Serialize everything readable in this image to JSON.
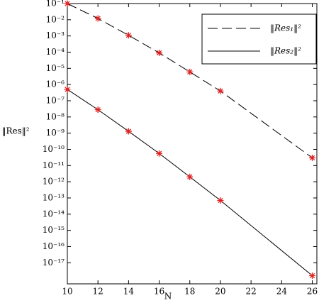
{
  "chart_data": {
    "type": "line",
    "xlabel": "N",
    "ylabel": "‖Res‖²",
    "x": [
      10,
      12,
      14,
      16,
      18,
      20,
      26
    ],
    "series": [
      {
        "name": "‖Res₁‖²",
        "color": "#000000",
        "linestyle": "dashed",
        "values": [
          0.1,
          0.012,
          0.0011,
          9e-05,
          6e-06,
          4e-07,
          3e-11
        ]
      },
      {
        "name": "‖Res₂‖²",
        "color": "#000000",
        "linestyle": "solid",
        "values": [
          5e-07,
          2.8e-08,
          1.3e-09,
          5.6e-11,
          2e-12,
          7e-14,
          1.6e-18
        ]
      }
    ],
    "marker": "star",
    "marker_color": "#e02020",
    "xlim": [
      10,
      26.3
    ],
    "xticks": [
      10,
      12,
      14,
      16,
      18,
      20,
      22,
      24,
      26
    ],
    "ylim": [
      5e-19,
      0.1
    ],
    "ylog": true,
    "yticks": [
      {
        "value": 0.1,
        "label": "10⁻¹"
      },
      {
        "value": 0.01,
        "label": "10⁻²"
      },
      {
        "value": 0.001,
        "label": "10⁻³"
      },
      {
        "value": 0.0001,
        "label": "10⁻⁴"
      },
      {
        "value": 1e-05,
        "label": "10⁻⁵"
      },
      {
        "value": 1e-06,
        "label": "10⁻⁶"
      },
      {
        "value": 1e-07,
        "label": "10⁻⁷"
      },
      {
        "value": 1e-08,
        "label": "10⁻⁸"
      },
      {
        "value": 1e-09,
        "label": "10⁻⁹"
      },
      {
        "value": 1e-10,
        "label": "10⁻¹⁰"
      },
      {
        "value": 1e-11,
        "label": "10⁻¹¹"
      },
      {
        "value": 1e-12,
        "label": "10⁻¹²"
      },
      {
        "value": 1e-13,
        "label": "10⁻¹³"
      },
      {
        "value": 1e-14,
        "label": "10⁻¹⁴"
      },
      {
        "value": 1e-15,
        "label": "10⁻¹⁵"
      },
      {
        "value": 1e-16,
        "label": "10⁻¹⁶"
      },
      {
        "value": 1e-17,
        "label": "10⁻¹⁷"
      }
    ],
    "legend": "top-right",
    "grid": false
  }
}
